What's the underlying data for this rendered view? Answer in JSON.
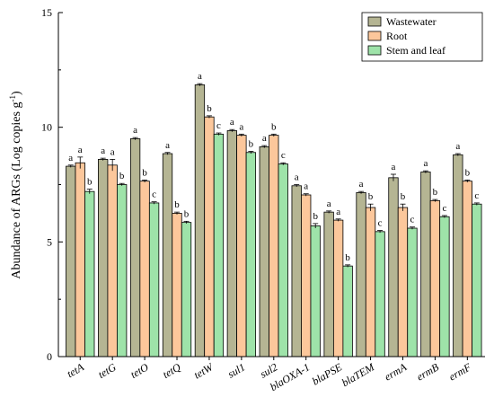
{
  "chart_data": {
    "type": "bar",
    "title": "",
    "xlabel": "",
    "ylabel": "Abundance of ARGs (Log copies g",
    "ylabel_sup": "-1",
    "ylabel_close": ")",
    "ylim": [
      0,
      15
    ],
    "yticks": [
      0,
      5,
      10,
      15
    ],
    "grid": false,
    "legend_position": "top-right",
    "categories": [
      "tetA",
      "tetG",
      "tetO",
      "tetQ",
      "tetW",
      "sul1",
      "sul2",
      "blaOXA-1",
      "blaPSE",
      "blaTEM",
      "ermA",
      "ermB",
      "ermF"
    ],
    "series": [
      {
        "name": "Wastewater",
        "color": "#b5b593",
        "values": [
          8.3,
          8.6,
          9.5,
          8.85,
          11.85,
          9.85,
          9.15,
          7.45,
          6.3,
          7.15,
          7.8,
          8.05,
          8.8
        ],
        "errors": [
          0.05,
          0.05,
          0.05,
          0.05,
          0.05,
          0.05,
          0.05,
          0.05,
          0.05,
          0.05,
          0.15,
          0.05,
          0.05
        ],
        "letters": [
          "a",
          "a",
          "a",
          "a",
          "a",
          "a",
          "a",
          "a",
          "a",
          "a",
          "a",
          "a",
          "a"
        ]
      },
      {
        "name": "Root",
        "color": "#fcc79b",
        "values": [
          8.45,
          8.35,
          7.65,
          6.25,
          10.45,
          9.65,
          9.65,
          7.05,
          5.95,
          6.5,
          6.5,
          6.8,
          7.65
        ],
        "errors": [
          0.25,
          0.25,
          0.05,
          0.05,
          0.05,
          0.05,
          0.05,
          0.05,
          0.05,
          0.15,
          0.15,
          0.05,
          0.05
        ],
        "letters": [
          "a",
          "a",
          "b",
          "b",
          "b",
          "a",
          "b",
          "a",
          "a",
          "b",
          "b",
          "b",
          "b"
        ]
      },
      {
        "name": "Stem and leaf",
        "color": "#9ee3a9",
        "values": [
          7.2,
          7.5,
          6.7,
          5.85,
          9.7,
          8.9,
          8.4,
          5.7,
          3.95,
          5.45,
          5.6,
          6.1,
          6.65
        ],
        "errors": [
          0.1,
          0.05,
          0.05,
          0.05,
          0.05,
          0.05,
          0.05,
          0.1,
          0.05,
          0.05,
          0.05,
          0.05,
          0.05
        ],
        "letters": [
          "b",
          "b",
          "c",
          "b",
          "c",
          "b",
          "c",
          "b",
          "b",
          "c",
          "c",
          "c",
          "c"
        ]
      }
    ]
  }
}
